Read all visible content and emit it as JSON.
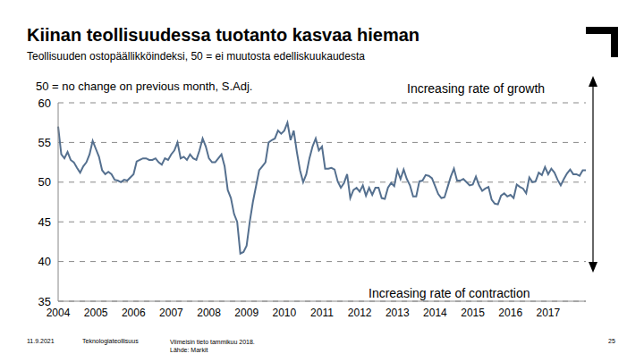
{
  "chart_data": {
    "type": "line",
    "title": "Kiinan teollisuudessa tuotanto kasvaa hieman",
    "subtitle": "Teollisuuden ostopäällikköindeksi, 50 = ei muutosta edelliskuukaudesta",
    "annotations": [
      "50 = no change on previous month, S.Adj.",
      "Increasing rate of growth",
      "Increasing rate of contraction"
    ],
    "categories": [
      "2004",
      null,
      null,
      null,
      null,
      null,
      null,
      null,
      null,
      null,
      null,
      null,
      "2005",
      null,
      null,
      null,
      null,
      null,
      null,
      null,
      null,
      null,
      null,
      null,
      "2006",
      null,
      null,
      null,
      null,
      null,
      null,
      null,
      null,
      null,
      null,
      null,
      "2007",
      null,
      null,
      null,
      null,
      null,
      null,
      null,
      null,
      null,
      null,
      null,
      "2008",
      null,
      null,
      null,
      null,
      null,
      null,
      null,
      null,
      null,
      null,
      null,
      "2009",
      null,
      null,
      null,
      null,
      null,
      null,
      null,
      null,
      null,
      null,
      null,
      "2010",
      null,
      null,
      null,
      null,
      null,
      null,
      null,
      null,
      null,
      null,
      null,
      "2011",
      null,
      null,
      null,
      null,
      null,
      null,
      null,
      null,
      null,
      null,
      null,
      "2012",
      null,
      null,
      null,
      null,
      null,
      null,
      null,
      null,
      null,
      null,
      null,
      "2013",
      null,
      null,
      null,
      null,
      null,
      null,
      null,
      null,
      null,
      null,
      null,
      "2014",
      null,
      null,
      null,
      null,
      null,
      null,
      null,
      null,
      null,
      null,
      null,
      "2015",
      null,
      null,
      null,
      null,
      null,
      null,
      null,
      null,
      null,
      null,
      null,
      "2016",
      null,
      null,
      null,
      null,
      null,
      null,
      null,
      null,
      null,
      null,
      null,
      "2017",
      null,
      null,
      null,
      null,
      null,
      null,
      null,
      null,
      null,
      null,
      null,
      null
    ],
    "values": [
      57,
      53.5,
      53,
      53.8,
      52.8,
      52.5,
      51.8,
      51.2,
      52,
      52.5,
      53.5,
      55.2,
      54.2,
      53.2,
      51.5,
      51,
      51.3,
      51,
      50.3,
      50.2,
      50,
      50.3,
      50.2,
      50.6,
      51,
      52.6,
      52.8,
      53,
      53,
      52.8,
      52.8,
      53,
      52.5,
      52.2,
      53,
      52.8,
      53.5,
      54,
      55,
      53,
      53.2,
      52.8,
      53.5,
      53,
      52.8,
      54,
      55.5,
      54.5,
      53,
      52.5,
      52.5,
      53,
      53.5,
      52,
      49,
      48,
      46,
      45,
      41,
      41.2,
      42,
      45,
      47.5,
      49.5,
      51.5,
      52,
      52.5,
      55,
      55.3,
      55.5,
      56.5,
      56.1,
      56.5,
      57.5,
      55.3,
      56.5,
      53.8,
      51.5,
      50,
      51,
      53,
      54.5,
      55.5,
      54,
      54.5,
      51.7,
      51.7,
      51.8,
      51.6,
      50.1,
      49.3,
      49.9,
      51,
      48,
      49,
      49.3,
      48.8,
      49.6,
      48.3,
      49.3,
      48.4,
      49.3,
      49.3,
      48,
      47.9,
      49.3,
      49.9,
      49.5,
      51.5,
      50.4,
      51.6,
      50.4,
      49.6,
      48.2,
      48.2,
      50.1,
      50.2,
      50.9,
      50.8,
      50.5,
      49.5,
      48.5,
      48,
      48.1,
      49.4,
      50.7,
      51.7,
      50.2,
      50.2,
      50.4,
      50,
      49.6,
      49.7,
      50.7,
      49.6,
      48.9,
      49.2,
      49.4,
      47.8,
      47.3,
      47.2,
      48.3,
      48.6,
      48.2,
      48.4,
      48,
      49.7,
      49.4,
      49.2,
      48.6,
      50.6,
      50,
      50.1,
      51.2,
      50.9,
      51.9,
      51,
      51.7,
      51.2,
      50.3,
      49.6,
      50.4,
      51.1,
      51.6,
      51,
      51,
      50.8,
      51.5,
      51.5
    ],
    "color": "#55708f",
    "ylim": [
      35,
      60
    ],
    "yticks": [
      35,
      40,
      45,
      50,
      55,
      60
    ],
    "grid": true
  },
  "footer": {
    "date": "11.9.2021",
    "organization": "Teknologiateollisuus",
    "note": "Viimeisin tieto tammikuu 2018.",
    "source": "Lähde: Markit",
    "page": 25
  }
}
